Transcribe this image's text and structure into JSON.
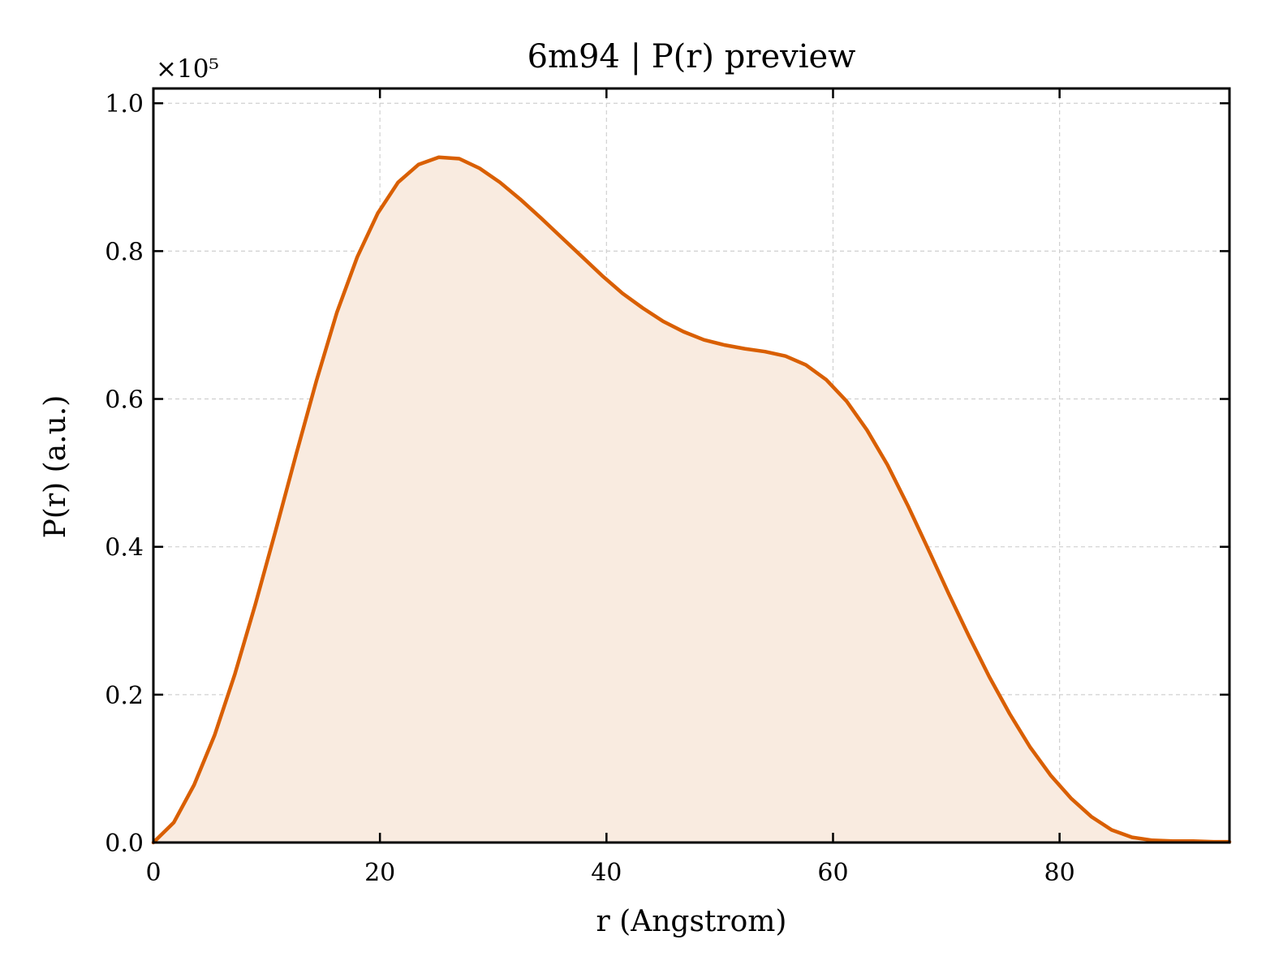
{
  "chart_data": {
    "type": "area",
    "title": "6m94 | P(r) preview",
    "xlabel": "r (Angstrom)",
    "ylabel": "P(r) (a.u.)",
    "y_offset_text": "×10⁵",
    "xlim": [
      0,
      95
    ],
    "ylim": [
      0,
      1.02
    ],
    "y_multiplier": 100000,
    "x_ticks": [
      0,
      20,
      40,
      60,
      80
    ],
    "x_tick_labels": [
      "0",
      "20",
      "40",
      "60",
      "80"
    ],
    "y_ticks": [
      0.0,
      0.2,
      0.4,
      0.6,
      0.8,
      1.0
    ],
    "y_tick_labels": [
      "0.0",
      "0.2",
      "0.4",
      "0.6",
      "0.8",
      "1.0"
    ],
    "grid": true,
    "colors": {
      "line": "#d95f02",
      "fill": "#f9ebe0",
      "grid": "#d0d0d0"
    },
    "series": [
      {
        "x": [
          0,
          1.8,
          3.6,
          5.4,
          7.2,
          9.0,
          10.8,
          12.6,
          14.4,
          16.2,
          18.0,
          19.8,
          21.6,
          23.4,
          25.2,
          27.0,
          28.8,
          30.6,
          32.4,
          34.2,
          36.0,
          37.8,
          39.6,
          41.4,
          43.2,
          45.0,
          46.8,
          48.6,
          50.4,
          52.2,
          54.0,
          55.8,
          57.6,
          59.4,
          61.2,
          63.0,
          64.8,
          66.6,
          68.4,
          70.2,
          72.0,
          73.8,
          75.6,
          77.4,
          79.2,
          81.0,
          82.8,
          84.6,
          86.4,
          88.2,
          90.0,
          91.8,
          93.6,
          95.0
        ],
        "y": [
          0.0,
          0.027,
          0.078,
          0.145,
          0.228,
          0.322,
          0.422,
          0.525,
          0.625,
          0.717,
          0.792,
          0.851,
          0.893,
          0.917,
          0.927,
          0.925,
          0.912,
          0.893,
          0.87,
          0.845,
          0.819,
          0.793,
          0.767,
          0.743,
          0.723,
          0.705,
          0.691,
          0.68,
          0.673,
          0.668,
          0.664,
          0.658,
          0.646,
          0.626,
          0.597,
          0.558,
          0.511,
          0.456,
          0.397,
          0.337,
          0.279,
          0.224,
          0.174,
          0.129,
          0.091,
          0.06,
          0.035,
          0.017,
          0.007,
          0.003,
          0.002,
          0.002,
          0.001,
          0.001
        ]
      }
    ]
  }
}
